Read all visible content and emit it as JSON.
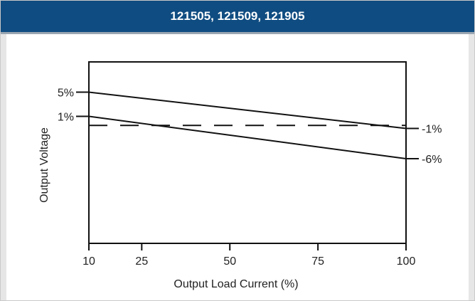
{
  "chart_data": {
    "type": "line",
    "title": "121505, 121509, 121905",
    "xlabel": "Output Load Current (%)",
    "ylabel": "Output Voltage",
    "xlim": [
      10,
      100
    ],
    "ylim": [
      -20,
      10
    ],
    "x_ticks": [
      10,
      25,
      50,
      75,
      100
    ],
    "x_tick_labels": [
      "10",
      "25",
      "50",
      "75",
      "100"
    ],
    "series": [
      {
        "values": [
          [
            10,
            5
          ],
          [
            100,
            -1
          ]
        ],
        "start_label": "5%",
        "end_label": "-1%",
        "style": "solid"
      },
      {
        "values": [
          [
            10,
            1
          ],
          [
            100,
            -6
          ]
        ],
        "start_label": "1%",
        "end_label": "-6%",
        "style": "solid"
      },
      {
        "values": [
          [
            10,
            -0.5
          ],
          [
            100,
            -0.5
          ]
        ],
        "style": "dashed"
      }
    ],
    "grid": false,
    "colors": {
      "header": "#0f4c81",
      "line": "#111111"
    }
  }
}
